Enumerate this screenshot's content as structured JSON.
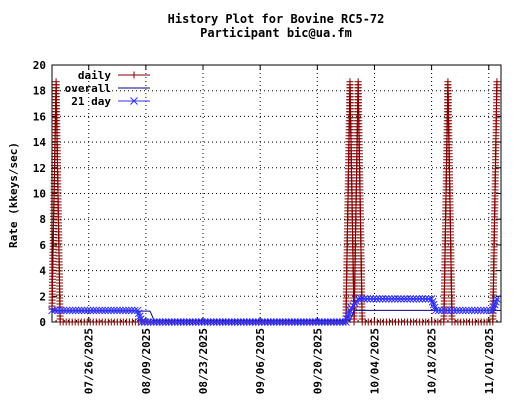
{
  "chart_data": {
    "type": "line",
    "title": "History Plot for Bovine RC5-72",
    "subtitle": "Participant bic@ua.fm",
    "xlabel": "",
    "ylabel": "Rate (kkeys/sec)",
    "ylim": [
      0,
      20
    ],
    "yticks": [
      "0",
      "2",
      "4",
      "6",
      "8",
      "10",
      "12",
      "14",
      "16",
      "18",
      "20"
    ],
    "xlim": [
      "2025-07-17",
      "2025-11-04"
    ],
    "xticks": [
      "07/26/2025",
      "08/09/2025",
      "08/23/2025",
      "09/06/2025",
      "09/20/2025",
      "10/04/2025",
      "10/18/2025",
      "11/01/2025"
    ],
    "grid": true,
    "legend_position": "top-left",
    "colors": {
      "daily": "#800000",
      "overall": "#000080",
      "twentyone": "#3030ff"
    },
    "series": [
      {
        "name": "daily",
        "marker": "plus",
        "points": [
          [
            "2025-07-17",
            1.0
          ],
          [
            "2025-07-18",
            18.7
          ],
          [
            "2025-07-19",
            0.0
          ],
          [
            "2025-09-27",
            0.0
          ],
          [
            "2025-09-28",
            18.7
          ],
          [
            "2025-09-29",
            0.0
          ],
          [
            "2025-09-30",
            18.7
          ],
          [
            "2025-10-01",
            0.0
          ],
          [
            "2025-10-21",
            0.0
          ],
          [
            "2025-10-22",
            18.7
          ],
          [
            "2025-10-23",
            0.0
          ],
          [
            "2025-11-02",
            0.0
          ],
          [
            "2025-11-03",
            18.7
          ]
        ]
      },
      {
        "name": "overall",
        "marker": "none",
        "points": [
          [
            "2025-07-17",
            0.85
          ],
          [
            "2025-08-10",
            0.85
          ],
          [
            "2025-08-11",
            0.15
          ],
          [
            "2025-09-28",
            0.15
          ],
          [
            "2025-09-29",
            0.9
          ],
          [
            "2025-11-04",
            0.9
          ]
        ]
      },
      {
        "name": "21 day",
        "marker": "x",
        "points": [
          [
            "2025-07-17",
            0.9
          ],
          [
            "2025-08-07",
            0.9
          ],
          [
            "2025-08-08",
            0.0
          ],
          [
            "2025-09-27",
            0.0
          ],
          [
            "2025-09-28",
            0.9
          ],
          [
            "2025-09-30",
            1.8
          ],
          [
            "2025-10-18",
            1.8
          ],
          [
            "2025-10-19",
            0.9
          ],
          [
            "2025-11-02",
            0.9
          ],
          [
            "2025-11-03",
            1.8
          ]
        ]
      }
    ]
  }
}
